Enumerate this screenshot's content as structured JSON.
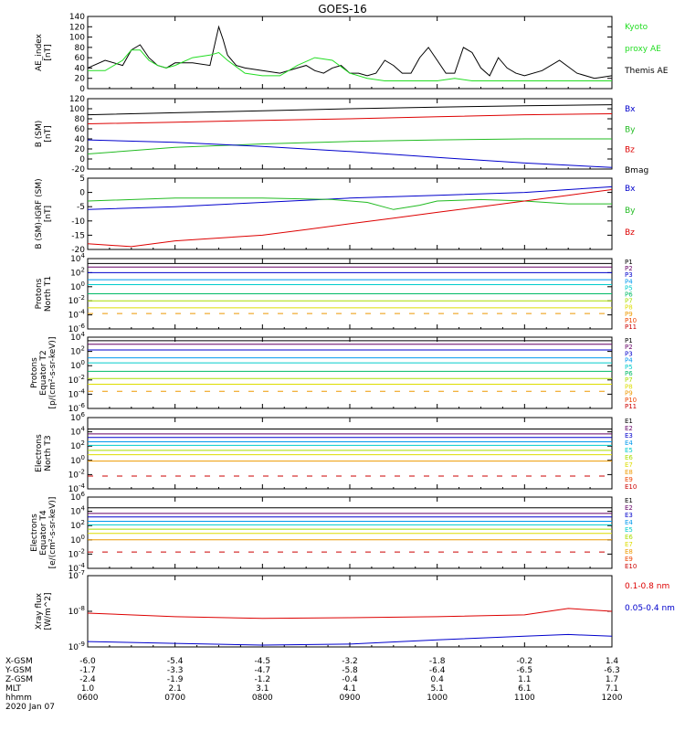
{
  "title": "GOES-16",
  "time_ticks": [
    "0600",
    "0700",
    "0800",
    "0900",
    "1000",
    "1100",
    "1200"
  ],
  "ephemeris": {
    "rows": [
      {
        "label": "X-GSM",
        "values": [
          "-6.0",
          "-5.4",
          "-4.5",
          "-3.2",
          "-1.8",
          "-0.2",
          "1.4"
        ]
      },
      {
        "label": "Y-GSM",
        "values": [
          "-1.7",
          "-3.3",
          "-4.7",
          "-5.8",
          "-6.4",
          "-6.5",
          "-6.3"
        ]
      },
      {
        "label": "Z-GSM",
        "values": [
          "-2.4",
          "-1.9",
          "-1.2",
          "-0.4",
          "0.4",
          "1.1",
          "1.7"
        ]
      },
      {
        "label": "MLT",
        "values": [
          "1.0",
          "2.1",
          "3.1",
          "4.1",
          "5.1",
          "6.1",
          "7.1"
        ]
      },
      {
        "label": "hhmm",
        "values": [
          "0600",
          "0700",
          "0800",
          "0900",
          "1000",
          "1100",
          "1200"
        ]
      }
    ],
    "date": "2020 Jan 07"
  },
  "chart_data": [
    {
      "type": "line",
      "ylabel": [
        "AE_index",
        "[nT]"
      ],
      "ylim": [
        0,
        140
      ],
      "scale": "linear",
      "yticks": [
        "140",
        "120",
        "100",
        "80",
        "60",
        "40",
        "20",
        "0"
      ],
      "legend": [
        {
          "name": "Kyoto",
          "color": "#22dd22"
        },
        {
          "name": "proxy AE",
          "color": "#22dd22"
        },
        {
          "name": "Themis AE",
          "color": "#000000"
        }
      ],
      "series": [
        {
          "name": "Themis AE",
          "color": "#000000",
          "x": [
            6.0,
            6.2,
            6.4,
            6.5,
            6.6,
            6.7,
            6.8,
            6.9,
            7.0,
            7.2,
            7.4,
            7.5,
            7.55,
            7.6,
            7.7,
            7.8,
            8.0,
            8.2,
            8.4,
            8.5,
            8.6,
            8.7,
            8.8,
            8.9,
            9.0,
            9.1,
            9.2,
            9.3,
            9.4,
            9.5,
            9.6,
            9.7,
            9.8,
            9.9,
            10.0,
            10.1,
            10.2,
            10.3,
            10.4,
            10.5,
            10.6,
            10.7,
            10.8,
            10.9,
            11.0,
            11.2,
            11.4,
            11.6,
            11.8,
            12.0
          ],
          "y": [
            40,
            55,
            45,
            75,
            85,
            60,
            45,
            40,
            50,
            50,
            45,
            120,
            95,
            65,
            45,
            40,
            35,
            30,
            40,
            45,
            35,
            30,
            40,
            45,
            30,
            30,
            25,
            30,
            55,
            45,
            30,
            30,
            60,
            80,
            55,
            30,
            30,
            80,
            70,
            40,
            25,
            60,
            40,
            30,
            25,
            35,
            55,
            30,
            20,
            25
          ]
        },
        {
          "name": "Kyoto proxy AE",
          "color": "#22dd22",
          "x": [
            6.0,
            6.2,
            6.4,
            6.5,
            6.6,
            6.7,
            6.8,
            6.9,
            7.0,
            7.2,
            7.4,
            7.5,
            7.6,
            7.8,
            8.0,
            8.2,
            8.4,
            8.6,
            8.8,
            9.0,
            9.2,
            9.4,
            9.6,
            9.8,
            10.0,
            10.2,
            10.4,
            10.6,
            10.8,
            11.0,
            11.2,
            11.4,
            11.6,
            11.8,
            12.0
          ],
          "y": [
            35,
            35,
            55,
            75,
            75,
            55,
            45,
            40,
            45,
            60,
            65,
            70,
            55,
            30,
            25,
            25,
            45,
            60,
            55,
            30,
            20,
            15,
            15,
            15,
            15,
            20,
            15,
            15,
            15,
            15,
            15,
            15,
            15,
            15,
            15
          ]
        }
      ]
    },
    {
      "type": "line",
      "ylabel": [
        "B (SM)",
        "[nT]"
      ],
      "ylim": [
        -20,
        120
      ],
      "scale": "linear",
      "yticks": [
        "120",
        "100",
        "80",
        "60",
        "40",
        "20",
        "0",
        "-20"
      ],
      "legend": [
        {
          "name": "Bx",
          "color": "#0000cc"
        },
        {
          "name": "By",
          "color": "#22bb22"
        },
        {
          "name": "Bz",
          "color": "#dd0000"
        },
        {
          "name": "Bmag",
          "color": "#000000"
        }
      ],
      "series": [
        {
          "name": "Bmag",
          "color": "#000000",
          "x": [
            6,
            7,
            8,
            9,
            10,
            11,
            12
          ],
          "y": [
            88,
            92,
            96,
            100,
            103,
            106,
            108
          ]
        },
        {
          "name": "Bz",
          "color": "#dd0000",
          "x": [
            6,
            7,
            8,
            9,
            10,
            11,
            12
          ],
          "y": [
            70,
            73,
            77,
            80,
            84,
            88,
            90
          ]
        },
        {
          "name": "By",
          "color": "#22bb22",
          "x": [
            6,
            7,
            8,
            9,
            10,
            11,
            12
          ],
          "y": [
            10,
            23,
            30,
            35,
            38,
            40,
            40
          ]
        },
        {
          "name": "Bx",
          "color": "#0000cc",
          "x": [
            6,
            7,
            8,
            9,
            10,
            11,
            12
          ],
          "y": [
            38,
            33,
            25,
            15,
            3,
            -8,
            -17
          ]
        }
      ]
    },
    {
      "type": "line",
      "ylabel": [
        "B (SM)-IGRF (SM)",
        "[nT]"
      ],
      "ylim": [
        -20,
        5
      ],
      "scale": "linear",
      "yticks": [
        "5",
        "0",
        "-5",
        "-10",
        "-15",
        "-20"
      ],
      "legend": [
        {
          "name": "Bx",
          "color": "#0000cc"
        },
        {
          "name": "By",
          "color": "#22bb22"
        },
        {
          "name": "Bz",
          "color": "#dd0000"
        }
      ],
      "series": [
        {
          "name": "Bx",
          "color": "#0000cc",
          "x": [
            6,
            7,
            8,
            9,
            9.5,
            10,
            11,
            11.5,
            12
          ],
          "y": [
            -6,
            -5,
            -3.5,
            -2,
            -1.5,
            -1,
            0,
            1,
            2
          ]
        },
        {
          "name": "By",
          "color": "#22bb22",
          "x": [
            6,
            7,
            8,
            8.8,
            9.2,
            9.5,
            9.8,
            10,
            10.5,
            11,
            11.5,
            12
          ],
          "y": [
            -3,
            -2,
            -2,
            -2.5,
            -3.5,
            -6,
            -4.5,
            -3,
            -2.5,
            -3,
            -4,
            -4
          ]
        },
        {
          "name": "Bz",
          "color": "#dd0000",
          "x": [
            6,
            6.5,
            7,
            7.5,
            8,
            8.5,
            9,
            9.5,
            10,
            10.5,
            11,
            11.5,
            12
          ],
          "y": [
            -18,
            -19,
            -17,
            -16,
            -15,
            -13,
            -11,
            -9,
            -7,
            -5,
            -3,
            -1,
            1
          ]
        }
      ]
    },
    {
      "type": "line",
      "ylabel": [
        "Protons",
        "North T1"
      ],
      "ylim": [
        -6,
        4
      ],
      "scale": "log",
      "yticks": [
        "10^4",
        "10^2",
        "10^0",
        "10^-2",
        "10^-4",
        "10^-6"
      ],
      "legend": [
        {
          "name": "P1",
          "color": "#000000"
        },
        {
          "name": "P2",
          "color": "#660066"
        },
        {
          "name": "P3",
          "color": "#0000cc"
        },
        {
          "name": "P4",
          "color": "#0099ee"
        },
        {
          "name": "P5",
          "color": "#00cccc"
        },
        {
          "name": "P6",
          "color": "#00bb66"
        },
        {
          "name": "P7",
          "color": "#aadd00"
        },
        {
          "name": "P8",
          "color": "#dddd00"
        },
        {
          "name": "P9",
          "color": "#ee9900"
        },
        {
          "name": "P10",
          "color": "#ee4400"
        },
        {
          "name": "P11",
          "color": "#cc0000"
        }
      ],
      "series": [
        {
          "name": "P1",
          "color": "#000000",
          "log10_level": 3.3
        },
        {
          "name": "P2",
          "color": "#660066",
          "log10_level": 2.8
        },
        {
          "name": "P3",
          "color": "#0000cc",
          "log10_level": 2.0
        },
        {
          "name": "P4",
          "color": "#0099ee",
          "log10_level": 1.0
        },
        {
          "name": "P5",
          "color": "#00cccc",
          "log10_level": 0.3
        },
        {
          "name": "P6",
          "color": "#00bb66",
          "log10_level": -1.0
        },
        {
          "name": "P7",
          "color": "#aadd00",
          "log10_level": -2.0
        },
        {
          "name": "P8",
          "color": "#dddd00",
          "log10_level": -3.0
        },
        {
          "name": "P9",
          "color": "#ee9900",
          "log10_level": -3.8,
          "dashed": true
        }
      ]
    },
    {
      "type": "line",
      "ylabel": [
        "Protons",
        "Equator T2",
        "[p/(cm²-s-sr-keV)]"
      ],
      "ylim": [
        -6,
        4
      ],
      "scale": "log",
      "yticks": [
        "10^4",
        "10^2",
        "10^0",
        "10^-2",
        "10^-4",
        "10^-6"
      ],
      "legend": [
        {
          "name": "P1",
          "color": "#000000"
        },
        {
          "name": "P2",
          "color": "#660066"
        },
        {
          "name": "P3",
          "color": "#0000cc"
        },
        {
          "name": "P4",
          "color": "#0099ee"
        },
        {
          "name": "P5",
          "color": "#00cccc"
        },
        {
          "name": "P6",
          "color": "#00bb66"
        },
        {
          "name": "P7",
          "color": "#aadd00"
        },
        {
          "name": "P8",
          "color": "#dddd00"
        },
        {
          "name": "P9",
          "color": "#ee9900"
        },
        {
          "name": "P10",
          "color": "#ee4400"
        },
        {
          "name": "P11",
          "color": "#cc0000"
        }
      ],
      "series": [
        {
          "name": "P1",
          "color": "#000000",
          "log10_level": 3.5
        },
        {
          "name": "P2",
          "color": "#660066",
          "log10_level": 3.0
        },
        {
          "name": "P3",
          "color": "#0000cc",
          "log10_level": 2.2
        },
        {
          "name": "P4",
          "color": "#0099ee",
          "log10_level": 1.1
        },
        {
          "name": "P5",
          "color": "#00cccc",
          "log10_level": 0.4
        },
        {
          "name": "P6",
          "color": "#00bb66",
          "log10_level": -0.8
        },
        {
          "name": "P7",
          "color": "#aadd00",
          "log10_level": -1.8
        },
        {
          "name": "P8",
          "color": "#dddd00",
          "log10_level": -2.6
        },
        {
          "name": "P9",
          "color": "#ee9900",
          "log10_level": -3.6,
          "dashed": true
        }
      ]
    },
    {
      "type": "line",
      "ylabel": [
        "Electrons",
        "North T3"
      ],
      "ylim": [
        -4,
        6
      ],
      "scale": "log",
      "yticks": [
        "10^6",
        "10^4",
        "10^2",
        "10^0",
        "10^-2",
        "10^-4"
      ],
      "legend": [
        {
          "name": "E1",
          "color": "#000000"
        },
        {
          "name": "E2",
          "color": "#660066"
        },
        {
          "name": "E3",
          "color": "#0000cc"
        },
        {
          "name": "E4",
          "color": "#0099ee"
        },
        {
          "name": "E5",
          "color": "#00cccc"
        },
        {
          "name": "E6",
          "color": "#aadd00"
        },
        {
          "name": "E7",
          "color": "#dddd00"
        },
        {
          "name": "E8",
          "color": "#ee9900"
        },
        {
          "name": "E9",
          "color": "#ee4400"
        },
        {
          "name": "E10",
          "color": "#cc0000"
        }
      ],
      "series": [
        {
          "name": "E1",
          "color": "#000000",
          "log10_level": 4.4
        },
        {
          "name": "E2",
          "color": "#660066",
          "log10_level": 3.7
        },
        {
          "name": "E3",
          "color": "#0000cc",
          "log10_level": 3.2
        },
        {
          "name": "E4",
          "color": "#0099ee",
          "log10_level": 2.6
        },
        {
          "name": "E5",
          "color": "#00cccc",
          "log10_level": 2.1
        },
        {
          "name": "E6",
          "color": "#aadd00",
          "log10_level": 1.4
        },
        {
          "name": "E7",
          "color": "#dddd00",
          "log10_level": 0.8
        },
        {
          "name": "E8",
          "color": "#ee9900",
          "log10_level": -0.1
        },
        {
          "name": "E10",
          "color": "#cc0000",
          "log10_level": -2.2,
          "dashed": true
        }
      ]
    },
    {
      "type": "line",
      "ylabel": [
        "Electrons",
        "Equator T4",
        "[e/(cm²-s-sr-keV)]"
      ],
      "ylim": [
        -4,
        6
      ],
      "scale": "log",
      "yticks": [
        "10^6",
        "10^4",
        "10^2",
        "10^0",
        "10^-2",
        "10^-4"
      ],
      "legend": [
        {
          "name": "E1",
          "color": "#000000"
        },
        {
          "name": "E2",
          "color": "#660066"
        },
        {
          "name": "E3",
          "color": "#0000cc"
        },
        {
          "name": "E4",
          "color": "#0099ee"
        },
        {
          "name": "E5",
          "color": "#00cccc"
        },
        {
          "name": "E6",
          "color": "#aadd00"
        },
        {
          "name": "E7",
          "color": "#dddd00"
        },
        {
          "name": "E8",
          "color": "#ee9900"
        },
        {
          "name": "E9",
          "color": "#ee4400"
        },
        {
          "name": "E10",
          "color": "#cc0000"
        }
      ],
      "series": [
        {
          "name": "E1",
          "color": "#000000",
          "log10_level": 4.5
        },
        {
          "name": "E2",
          "color": "#660066",
          "log10_level": 3.7
        },
        {
          "name": "E3",
          "color": "#0000cc",
          "log10_level": 3.2
        },
        {
          "name": "E4",
          "color": "#0099ee",
          "log10_level": 2.6
        },
        {
          "name": "E5",
          "color": "#00cccc",
          "log10_level": 2.1
        },
        {
          "name": "E6",
          "color": "#aadd00",
          "log10_level": 1.5
        },
        {
          "name": "E7",
          "color": "#dddd00",
          "log10_level": 0.9
        },
        {
          "name": "E8",
          "color": "#ee9900",
          "log10_level": 0.0
        },
        {
          "name": "E10",
          "color": "#cc0000",
          "log10_level": -1.7,
          "dashed": true
        }
      ]
    },
    {
      "type": "line",
      "ylabel": [
        "Xray flux",
        "[W/m^2]"
      ],
      "ylim": [
        -9,
        -7
      ],
      "scale": "log",
      "yticks": [
        "10^-7",
        "10^-8",
        "10^-9"
      ],
      "legend": [
        {
          "name": "0.1-0.8 nm",
          "color": "#dd0000"
        },
        {
          "name": "0.05-0.4 nm",
          "color": "#0000cc"
        }
      ],
      "series": [
        {
          "name": "0.1-0.8 nm",
          "color": "#dd0000",
          "x": [
            6,
            7,
            8,
            9,
            10,
            11,
            11.5,
            12
          ],
          "log10_y": [
            -8.05,
            -8.15,
            -8.2,
            -8.18,
            -8.15,
            -8.1,
            -7.92,
            -8.0
          ]
        },
        {
          "name": "0.05-0.4 nm",
          "color": "#0000cc",
          "x": [
            6,
            7,
            8,
            9,
            10,
            11,
            11.5,
            12
          ],
          "log10_y": [
            -8.85,
            -8.9,
            -8.95,
            -8.92,
            -8.8,
            -8.7,
            -8.65,
            -8.7
          ]
        }
      ]
    }
  ]
}
